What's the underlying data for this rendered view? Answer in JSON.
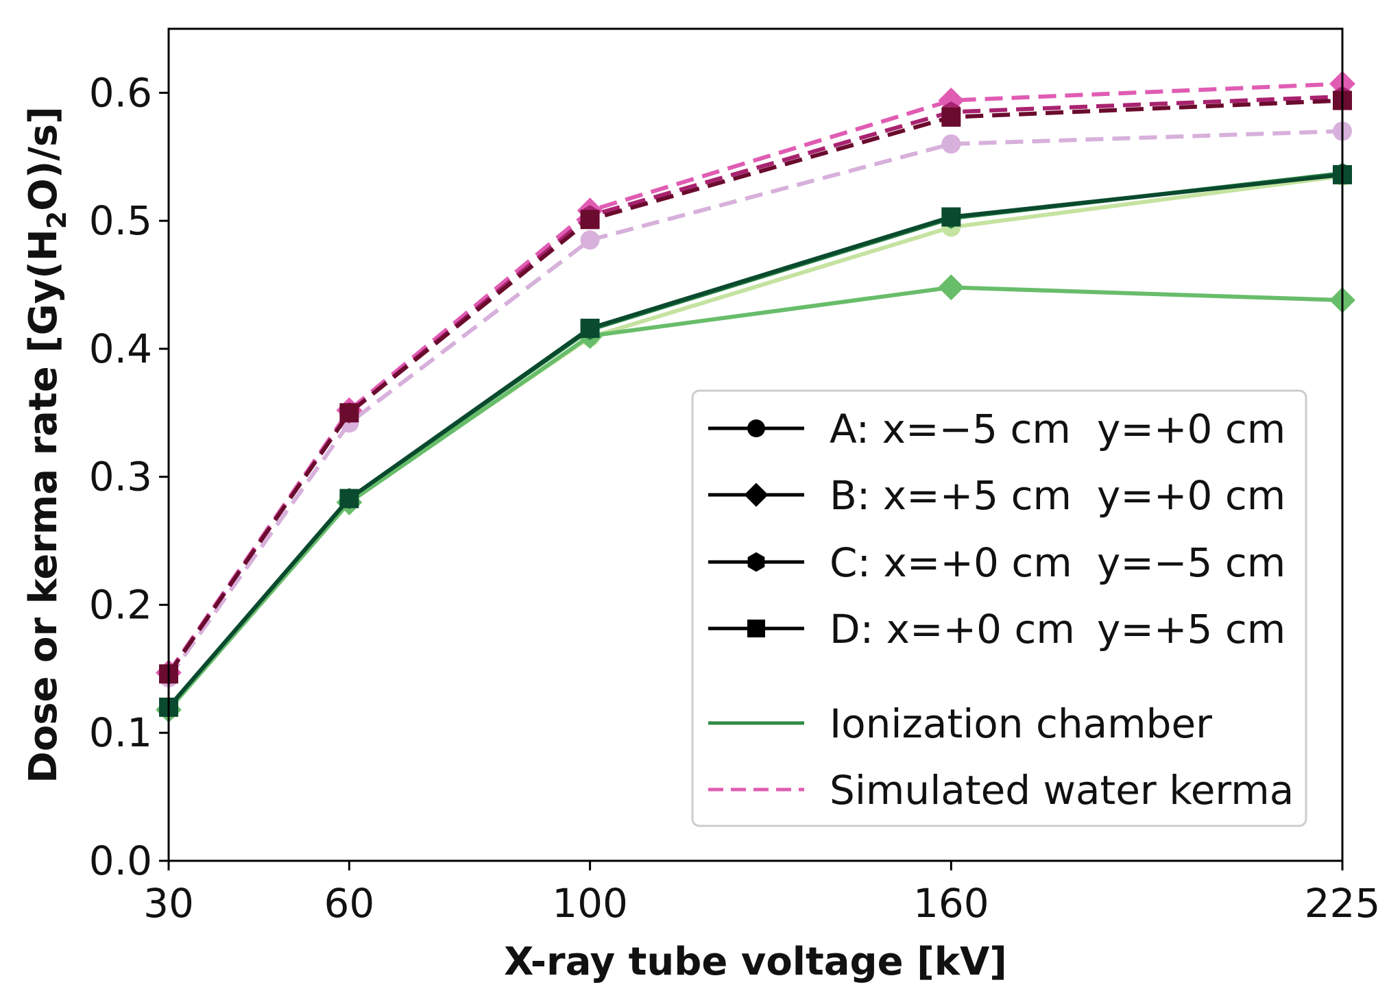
{
  "chart_data": {
    "type": "line",
    "title": "",
    "xlabel": "X-ray tube voltage [kV]",
    "ylabel": {
      "prefix": "Dose or kerma rate [Gy(H",
      "subscript": "2",
      "suffix": "O)/s]"
    },
    "x": [
      30,
      60,
      100,
      160,
      225
    ],
    "x_ticks": [
      "30",
      "60",
      "100",
      "160",
      "225"
    ],
    "y_ticks": [
      "0.0",
      "0.1",
      "0.2",
      "0.3",
      "0.4",
      "0.5",
      "0.6"
    ],
    "xlim": [
      30,
      225
    ],
    "ylim": [
      0,
      0.65
    ],
    "grid": false,
    "legend_position": "lower-right",
    "series": [
      {
        "name": "A (ionization chamber)",
        "group": "Ionization chamber",
        "marker": "circle",
        "color": "#c5e3a0",
        "dash": "solid",
        "values": [
          0.118,
          0.281,
          0.409,
          0.495,
          0.535
        ]
      },
      {
        "name": "B (ionization chamber)",
        "group": "Ionization chamber",
        "marker": "diamond",
        "color": "#68bd6a",
        "dash": "solid",
        "values": [
          0.118,
          0.28,
          0.41,
          0.448,
          0.438
        ]
      },
      {
        "name": "C (ionization chamber)",
        "group": "Ionization chamber",
        "marker": "hexagon",
        "color": "#227e3f",
        "dash": "solid",
        "values": [
          0.12,
          0.283,
          0.415,
          0.502,
          0.537
        ]
      },
      {
        "name": "D (ionization chamber)",
        "group": "Ionization chamber",
        "marker": "square",
        "color": "#0a4a2e",
        "dash": "solid",
        "values": [
          0.12,
          0.283,
          0.416,
          0.503,
          0.536
        ]
      },
      {
        "name": "A (simulated water kerma)",
        "group": "Simulated water kerma",
        "marker": "circle",
        "color": "#d7b0db",
        "dash": "dashed",
        "values": [
          0.143,
          0.342,
          0.485,
          0.56,
          0.57
        ]
      },
      {
        "name": "B (simulated water kerma)",
        "group": "Simulated water kerma",
        "marker": "diamond",
        "color": "#e05cb3",
        "dash": "dashed",
        "values": [
          0.147,
          0.352,
          0.508,
          0.594,
          0.607
        ]
      },
      {
        "name": "C (simulated water kerma)",
        "group": "Simulated water kerma",
        "marker": "hexagon",
        "color": "#a8236f",
        "dash": "dashed",
        "values": [
          0.146,
          0.35,
          0.504,
          0.585,
          0.597
        ]
      },
      {
        "name": "D (simulated water kerma)",
        "group": "Simulated water kerma",
        "marker": "square",
        "color": "#6b0b2e",
        "dash": "dashed",
        "values": [
          0.146,
          0.35,
          0.501,
          0.581,
          0.594
        ]
      }
    ],
    "legend": {
      "positions": [
        {
          "label": "A:",
          "x": "x=−5 cm",
          "y": "y=+0 cm",
          "marker": "circle"
        },
        {
          "label": "B:",
          "x": "x=+5 cm",
          "y": "y=+0 cm",
          "marker": "diamond"
        },
        {
          "label": "C:",
          "x": "x=+0 cm",
          "y": "y=−5 cm",
          "marker": "hexagon"
        },
        {
          "label": "D:",
          "x": "x=+0 cm",
          "y": "y=+5 cm",
          "marker": "square"
        }
      ],
      "styles": [
        {
          "label": "Ionization chamber",
          "color": "#2e8a45",
          "dash": "solid"
        },
        {
          "label": "Simulated water kerma",
          "color": "#e05cb3",
          "dash": "dashed"
        }
      ]
    }
  }
}
